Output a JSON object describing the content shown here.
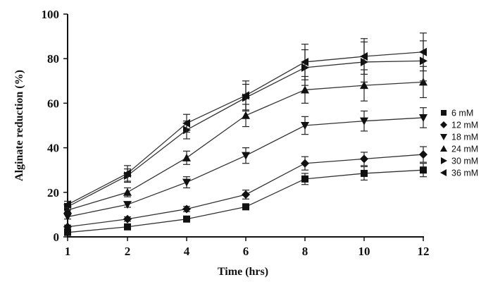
{
  "chart_data": {
    "type": "line",
    "title": "",
    "xlabel": "Time (hrs)",
    "ylabel": "Alginate reduction (%)",
    "xlim": [
      1,
      12
    ],
    "ylim": [
      0,
      100
    ],
    "x_ticks": [
      1,
      2,
      4,
      6,
      8,
      10,
      12
    ],
    "y_ticks": [
      0,
      20,
      40,
      60,
      80,
      100
    ],
    "x_scale": "categorical",
    "grid": false,
    "legend_position": "right",
    "x": [
      1,
      2,
      4,
      6,
      8,
      10,
      12
    ],
    "series": [
      {
        "name": "6 mM",
        "marker": "square",
        "values": [
          2,
          4.5,
          8,
          13.5,
          26,
          28.5,
          30
        ],
        "errors": [
          0.8,
          0.8,
          1,
          1.2,
          2.5,
          3,
          3
        ]
      },
      {
        "name": "12 mM",
        "marker": "diamond",
        "values": [
          4.5,
          8,
          12.5,
          19,
          33,
          35,
          37
        ],
        "errors": [
          0.8,
          1,
          1.2,
          2,
          3,
          3,
          3.5
        ]
      },
      {
        "name": "18 mM",
        "marker": "triangle-down",
        "values": [
          9,
          14.5,
          24.5,
          36.5,
          50,
          52,
          53.5
        ],
        "errors": [
          1,
          1.2,
          2.5,
          3.5,
          4,
          4.5,
          4.5
        ]
      },
      {
        "name": "24 mM",
        "marker": "triangle-up",
        "values": [
          12,
          20,
          35.5,
          54.5,
          66,
          68,
          69.5
        ],
        "errors": [
          1.5,
          2,
          3,
          5,
          6,
          7,
          7
        ]
      },
      {
        "name": "30 mM",
        "marker": "triangle-right",
        "values": [
          13.5,
          27.5,
          48,
          62.5,
          76,
          78.5,
          79
        ],
        "errors": [
          1.5,
          3,
          4,
          6,
          8,
          9,
          9
        ]
      },
      {
        "name": "36 mM",
        "marker": "triangle-left",
        "values": [
          14.5,
          28.5,
          51,
          63.5,
          78.5,
          81,
          83
        ],
        "errors": [
          1.5,
          3.5,
          4,
          6.5,
          8,
          8,
          8.5
        ]
      }
    ]
  }
}
